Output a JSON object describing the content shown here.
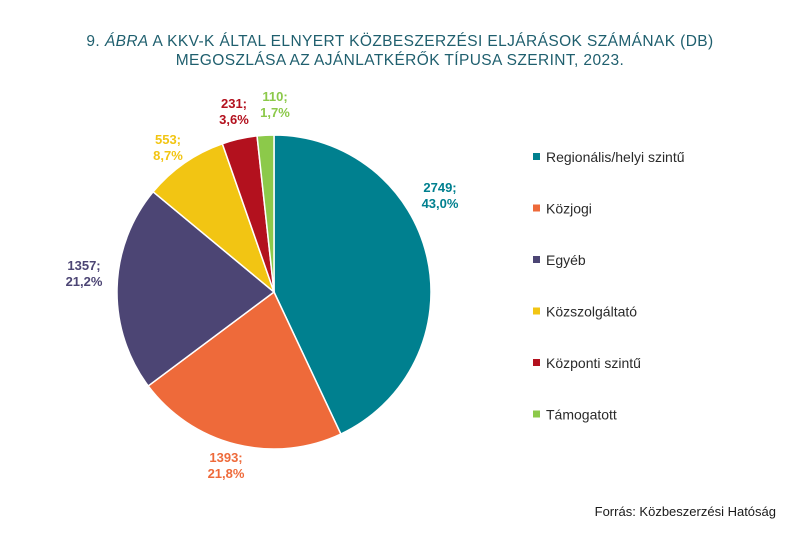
{
  "title": {
    "number": "9.",
    "label_word": "ÁBRA",
    "line1_rest": "A KKV-K ÁLTAL ELNYERT KÖZBESZERZÉSI ELJÁRÁSOK SZÁMÁNAK (DB)",
    "line2": "MEGOSZLÁSA AZ AJÁNLATKÉRŐK TÍPUSA SZERINT, 2023."
  },
  "source": "Forrás: Közbeszerzési Hatóság",
  "chart_data": {
    "type": "pie",
    "start_angle_deg": 0,
    "direction": "clockwise",
    "legend_position": "right",
    "slices": [
      {
        "name": "Regionális/helyi szintű",
        "value": 2749,
        "percent": "43,0%",
        "value_label": "2749;",
        "color": "#00808f"
      },
      {
        "name": "Közjogi",
        "value": 1393,
        "percent": "21,8%",
        "value_label": "1393;",
        "color": "#ee6a3a"
      },
      {
        "name": "Egyéb",
        "value": 1357,
        "percent": "21,2%",
        "value_label": "1357;",
        "color": "#4c4574"
      },
      {
        "name": "Közszolgáltató",
        "value": 553,
        "percent": "8,7%",
        "value_label": "553;",
        "color": "#f2c513"
      },
      {
        "name": "Központi szintű",
        "value": 231,
        "percent": "3,6%",
        "value_label": "231;",
        "color": "#b3111e"
      },
      {
        "name": "Támogatott",
        "value": 110,
        "percent": "1,7%",
        "value_label": "110;",
        "color": "#8cc94a"
      }
    ]
  }
}
